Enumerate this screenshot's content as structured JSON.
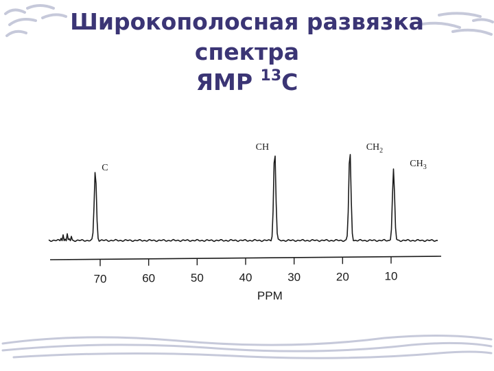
{
  "slide": {
    "title_line1": "Широкополосная развязка",
    "title_line2": "спектра",
    "title_line3_prefix": "ЯМР ",
    "title_line3_sup": "13",
    "title_line3_suffix": "С"
  },
  "colors": {
    "title": "#3b3575",
    "stripe": "#c6c9da",
    "trace": "#1a1a1a"
  },
  "chart_data": {
    "type": "line",
    "title": "",
    "xlabel": "PPM",
    "ylabel": "",
    "xlim": [
      80,
      0
    ],
    "x_reversed": true,
    "ticks": [
      70,
      60,
      50,
      40,
      30,
      20,
      10
    ],
    "tick_labels": [
      "70",
      "60",
      "50",
      "40",
      "30",
      "20",
      "10"
    ],
    "grid": false,
    "peaks": [
      {
        "ppm": 71,
        "intensity": 0.78,
        "label": "C",
        "sub": ""
      },
      {
        "ppm": 34,
        "intensity": 1.0,
        "label": "CH",
        "sub": ""
      },
      {
        "ppm": 18.5,
        "intensity": 1.0,
        "label": "CH",
        "sub": "2"
      },
      {
        "ppm": 9.5,
        "intensity": 0.78,
        "label": "CH",
        "sub": "3"
      }
    ]
  }
}
